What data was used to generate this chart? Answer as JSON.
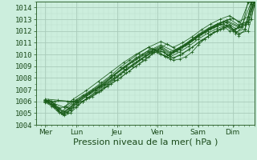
{
  "title": "Pression niveau de la mer( hPa )",
  "bg_color": "#cceedd",
  "grid_major_color": "#aaccbb",
  "grid_minor_color": "#bbddcc",
  "line_color": "#1a5c1a",
  "xlim": [
    0,
    7.0
  ],
  "ylim": [
    1004,
    1014.5
  ],
  "yticks": [
    1004,
    1005,
    1006,
    1007,
    1008,
    1009,
    1010,
    1011,
    1012,
    1013,
    1014
  ],
  "xtick_labels": [
    "Mer",
    "Lun",
    "Jeu",
    "Ven",
    "Sam",
    "Dim"
  ],
  "xtick_pos": [
    0.3,
    1.3,
    2.6,
    3.9,
    5.2,
    6.3
  ],
  "series": [
    [
      0.3,
      1006.0,
      0.4,
      1006.1,
      0.5,
      1006.0,
      0.6,
      1005.7,
      0.7,
      1005.3,
      0.8,
      1005.0,
      0.9,
      1004.9,
      1.0,
      1005.0,
      1.1,
      1005.3,
      1.2,
      1005.5,
      1.3,
      1005.8,
      1.5,
      1006.0,
      1.7,
      1006.3,
      2.0,
      1006.8,
      2.3,
      1007.3,
      2.6,
      1007.8,
      2.9,
      1008.4,
      3.2,
      1009.0,
      3.5,
      1009.5,
      3.8,
      1010.2,
      4.0,
      1010.0,
      4.2,
      1009.8,
      4.4,
      1009.5,
      4.6,
      1009.6,
      4.8,
      1009.8,
      5.0,
      1010.2,
      5.2,
      1010.8,
      5.4,
      1011.3,
      5.6,
      1011.7,
      5.8,
      1012.0,
      6.0,
      1012.2,
      6.2,
      1012.5,
      6.4,
      1011.8,
      6.6,
      1012.3,
      6.8,
      1014.5
    ],
    [
      0.3,
      1006.0,
      0.5,
      1005.8,
      0.7,
      1005.2,
      0.9,
      1004.8,
      1.1,
      1005.0,
      1.3,
      1005.5,
      1.5,
      1006.0,
      1.8,
      1006.4,
      2.1,
      1006.9,
      2.4,
      1007.5,
      2.7,
      1008.0,
      3.0,
      1008.6,
      3.3,
      1009.2,
      3.6,
      1009.8,
      3.9,
      1010.3,
      4.1,
      1009.9,
      4.3,
      1009.6,
      4.6,
      1009.9,
      4.9,
      1010.4,
      5.2,
      1011.0,
      5.5,
      1011.5,
      5.7,
      1011.9,
      6.0,
      1012.3,
      6.2,
      1012.5,
      6.5,
      1011.6,
      6.7,
      1012.1,
      6.9,
      1014.3
    ],
    [
      0.3,
      1006.1,
      0.6,
      1005.5,
      0.85,
      1004.9,
      1.1,
      1005.2,
      1.35,
      1005.7,
      1.6,
      1006.2,
      1.9,
      1006.7,
      2.2,
      1007.2,
      2.5,
      1007.8,
      2.8,
      1008.5,
      3.1,
      1009.0,
      3.4,
      1009.6,
      3.7,
      1010.2,
      4.0,
      1010.5,
      4.2,
      1010.0,
      4.4,
      1009.7,
      4.7,
      1010.1,
      5.0,
      1010.6,
      5.3,
      1011.2,
      5.6,
      1011.7,
      5.9,
      1012.1,
      6.2,
      1012.4,
      6.5,
      1011.8,
      6.8,
      1012.0,
      7.0,
      1014.2
    ],
    [
      0.3,
      1006.05,
      0.55,
      1005.7,
      0.8,
      1005.0,
      1.05,
      1005.4,
      1.3,
      1005.9,
      1.6,
      1006.4,
      1.9,
      1006.9,
      2.2,
      1007.4,
      2.6,
      1008.1,
      2.9,
      1008.7,
      3.2,
      1009.3,
      3.5,
      1009.9,
      3.8,
      1010.4,
      4.1,
      1010.2,
      4.3,
      1009.8,
      4.6,
      1010.2,
      4.9,
      1010.7,
      5.2,
      1011.3,
      5.5,
      1011.8,
      5.8,
      1012.2,
      6.1,
      1012.5,
      6.4,
      1011.9,
      6.7,
      1012.2,
      6.9,
      1014.4
    ],
    [
      0.3,
      1006.0,
      0.5,
      1006.0,
      0.7,
      1005.5,
      0.9,
      1005.1,
      1.1,
      1005.4,
      1.35,
      1005.9,
      1.6,
      1006.4,
      1.9,
      1007.0,
      2.2,
      1007.5,
      2.5,
      1008.2,
      2.8,
      1008.8,
      3.1,
      1009.4,
      3.4,
      1010.0,
      3.7,
      1010.5,
      4.0,
      1010.3,
      4.25,
      1009.9,
      4.5,
      1010.3,
      4.8,
      1010.8,
      5.1,
      1011.4,
      5.4,
      1011.9,
      5.7,
      1012.3,
      6.0,
      1012.6,
      6.3,
      1012.0,
      6.6,
      1012.4,
      6.9,
      1014.5
    ],
    [
      0.3,
      1006.0,
      0.4,
      1006.0,
      0.55,
      1005.8,
      0.75,
      1005.4,
      0.95,
      1005.6,
      1.2,
      1006.0,
      1.5,
      1006.5,
      1.8,
      1007.0,
      2.1,
      1007.6,
      2.4,
      1008.2,
      2.7,
      1008.9,
      3.0,
      1009.5,
      3.3,
      1010.1,
      3.6,
      1010.6,
      3.9,
      1010.2,
      4.15,
      1009.8,
      4.4,
      1010.2,
      4.7,
      1010.7,
      5.0,
      1011.3,
      5.3,
      1011.8,
      5.6,
      1012.2,
      5.9,
      1012.6,
      6.2,
      1012.0,
      6.5,
      1012.3,
      6.8,
      1014.4
    ],
    [
      0.3,
      1006.1,
      0.6,
      1006.0,
      1.0,
      1006.0,
      1.3,
      1006.0,
      1.7,
      1006.7,
      2.1,
      1007.3,
      2.5,
      1008.0,
      2.9,
      1008.8,
      3.3,
      1009.5,
      3.7,
      1010.1,
      4.0,
      1010.5,
      4.3,
      1010.0,
      4.6,
      1010.4,
      4.9,
      1010.9,
      5.2,
      1011.5,
      5.5,
      1012.0,
      5.8,
      1012.4,
      6.1,
      1012.7,
      6.4,
      1012.2,
      6.7,
      1012.5,
      7.0,
      1014.6
    ],
    [
      0.3,
      1006.0,
      0.7,
      1005.3,
      1.0,
      1005.1,
      1.3,
      1006.0,
      1.7,
      1006.7,
      2.1,
      1007.4,
      2.5,
      1008.2,
      2.9,
      1009.0,
      3.3,
      1009.7,
      3.7,
      1010.3,
      4.0,
      1010.6,
      4.3,
      1010.1,
      4.6,
      1010.5,
      4.9,
      1011.0,
      5.2,
      1011.6,
      5.5,
      1012.1,
      5.8,
      1012.5,
      6.1,
      1012.8,
      6.5,
      1012.3,
      6.8,
      1012.6,
      7.0,
      1014.5
    ],
    [
      0.3,
      1006.0,
      0.6,
      1005.6,
      0.9,
      1005.0,
      1.2,
      1005.8,
      1.6,
      1006.5,
      2.0,
      1007.2,
      2.4,
      1008.0,
      2.8,
      1008.9,
      3.2,
      1009.6,
      3.6,
      1010.2,
      4.0,
      1010.7,
      4.3,
      1010.2,
      4.6,
      1010.6,
      4.9,
      1011.1,
      5.2,
      1011.7,
      5.5,
      1012.2,
      5.8,
      1012.6,
      6.1,
      1012.9,
      6.5,
      1012.4,
      6.8,
      1012.7,
      7.0,
      1014.6
    ],
    [
      0.3,
      1005.9,
      0.5,
      1005.6,
      0.75,
      1005.0,
      1.0,
      1005.5,
      1.3,
      1006.1,
      1.6,
      1006.6,
      2.0,
      1007.3,
      2.4,
      1008.1,
      2.8,
      1008.9,
      3.2,
      1009.7,
      3.6,
      1010.3,
      4.0,
      1010.8,
      4.4,
      1010.3,
      4.7,
      1010.7,
      5.0,
      1011.2,
      5.3,
      1011.8,
      5.6,
      1012.3,
      5.9,
      1012.7,
      6.2,
      1013.0,
      6.5,
      1012.5,
      6.8,
      1012.8,
      7.0,
      1014.6
    ],
    [
      0.3,
      1006.2,
      0.7,
      1006.1,
      1.1,
      1006.0,
      1.5,
      1006.0,
      1.9,
      1006.8,
      2.3,
      1007.5,
      2.7,
      1008.3,
      3.1,
      1009.1,
      3.5,
      1009.8,
      3.9,
      1010.4,
      4.2,
      1010.9,
      4.5,
      1010.4,
      4.8,
      1010.8,
      5.1,
      1011.3,
      5.4,
      1011.9,
      5.7,
      1012.4,
      6.0,
      1012.8,
      6.3,
      1013.1,
      6.6,
      1012.6,
      6.9,
      1013.0,
      7.0,
      1014.5
    ],
    [
      0.3,
      1006.1,
      0.6,
      1005.8,
      0.9,
      1005.5,
      1.2,
      1006.2,
      1.6,
      1006.9,
      2.0,
      1007.7,
      2.4,
      1008.5,
      2.8,
      1009.3,
      3.2,
      1010.0,
      3.6,
      1010.6,
      4.0,
      1011.1,
      4.4,
      1010.6,
      4.7,
      1011.0,
      5.0,
      1011.5,
      5.3,
      1012.1,
      5.6,
      1012.6,
      5.9,
      1013.0,
      6.2,
      1013.3,
      6.5,
      1012.8,
      6.8,
      1013.2,
      7.0,
      1014.7
    ]
  ],
  "tick_fontsize": 6.5,
  "xlabel_fontsize": 8
}
